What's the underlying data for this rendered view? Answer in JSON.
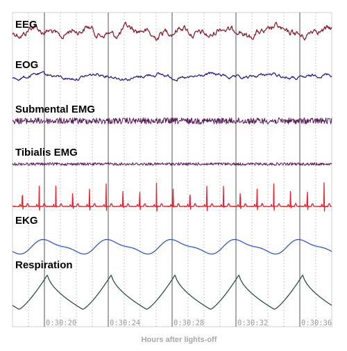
{
  "chart_data": {
    "type": "line",
    "xlabel": "Hours after lights-off",
    "ticks": [
      "0:30:20",
      "0:30:24",
      "0:30:28",
      "0:30:32",
      "0:30:36"
    ],
    "time_range_seconds": [
      18,
      38
    ],
    "channels": [
      {
        "name": "EEG",
        "color": "#8b1f2f",
        "waveform": "irregular-high-amplitude"
      },
      {
        "name": "EOG",
        "color": "#2a1f8f",
        "waveform": "irregular-low-amplitude"
      },
      {
        "name": "Submental EMG",
        "color": "#5a1a5a",
        "waveform": "high-frequency-noise"
      },
      {
        "name": "Tibialis EMG",
        "color": "#5a1a5a",
        "waveform": "low-noise"
      },
      {
        "name": "",
        "color": "#ee1c2e",
        "waveform": "ecg-spikes"
      },
      {
        "name": "EKG",
        "color": "#2e56c8",
        "waveform": "respiration-sinusoid"
      },
      {
        "name": "Respiration",
        "color": "#2f4f3f",
        "waveform": "respiration-sawtooth"
      }
    ],
    "grid": true
  }
}
